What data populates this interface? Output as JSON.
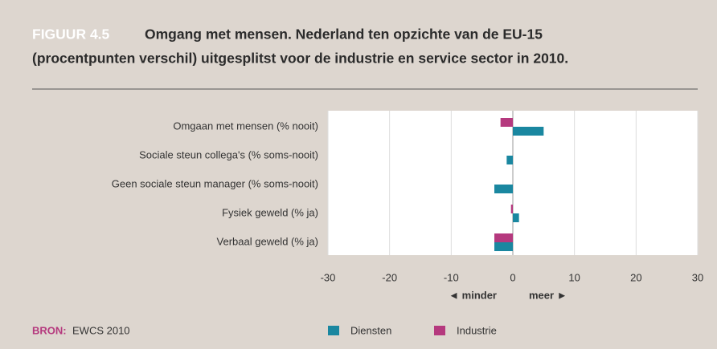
{
  "chart_data": {
    "type": "hbar",
    "figure_label": "FIGUUR 4.5",
    "title": [
      "Omgang met mensen. Nederland ten opzichte van de EU-15",
      "(procentpunten verschil) uitgesplitst voor de industrie en service sector in 2010."
    ],
    "categories": [
      "Omgaan met mensen (% nooit)",
      "Sociale steun collega's (% soms-nooit)",
      "Geen sociale steun manager (% soms-nooit)",
      "Fysiek geweld (% ja)",
      "Verbaal geweld (% ja)"
    ],
    "series": [
      {
        "name": "Diensten",
        "color": "#1a87a0",
        "values": [
          5,
          -1,
          -3,
          1,
          -3
        ]
      },
      {
        "name": "Industrie",
        "color": "#b5397e",
        "values": [
          -2,
          0,
          0,
          -0.3,
          -3
        ]
      }
    ],
    "xlim": [
      -30,
      30
    ],
    "xticks": [
      -30,
      -20,
      -10,
      0,
      10,
      20,
      30
    ],
    "direction_labels": [
      "◄ minder",
      "meer ►"
    ],
    "grid": true,
    "source_label": "BRON:",
    "source": "EWCS 2010"
  }
}
